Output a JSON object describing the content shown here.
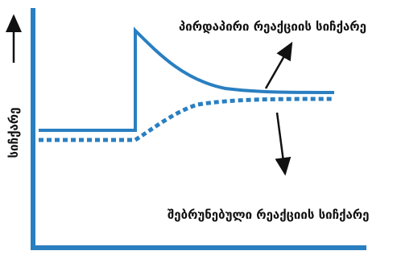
{
  "labels": {
    "forward": "პირდაპირი რეაქციის სიჩქარე",
    "reverse": "შებრუნებული რეაქციის სიჩქარე",
    "y_axis": "სიჩქარე"
  },
  "colors": {
    "axis": "#2a7fc1",
    "forward_curve": "#2a7fc1",
    "reverse_curve": "#2a7fc1",
    "arrows": "#111111",
    "text": "#111111"
  }
}
